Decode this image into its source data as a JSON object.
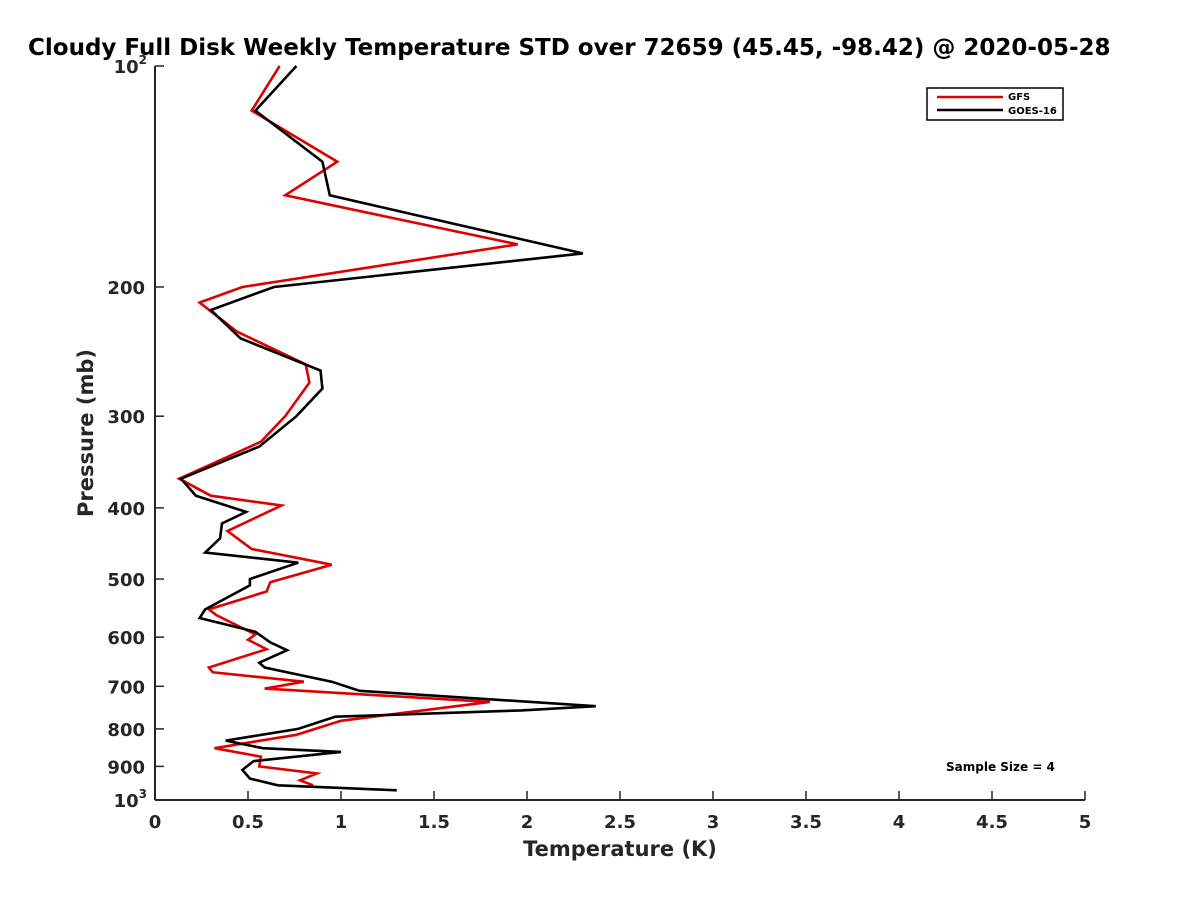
{
  "chart_data": {
    "type": "line",
    "title": "Cloudy Full Disk Weekly Temperature STD over 72659 (45.45, -98.42) @ 2020-05-28",
    "xlabel": "Temperature (K)",
    "ylabel": "Pressure (mb)",
    "xlim": [
      0,
      5
    ],
    "ylim": [
      100,
      1000
    ],
    "yscale": "log",
    "y_reversed": true,
    "x_ticks": [
      "0",
      "0.5",
      "1",
      "1.5",
      "2",
      "2.5",
      "3",
      "3.5",
      "4",
      "4.5",
      "5"
    ],
    "y_ticks": [
      {
        "value": 100,
        "base": "10",
        "exp": "2"
      },
      {
        "value": 200,
        "label": "200"
      },
      {
        "value": 300,
        "label": "300"
      },
      {
        "value": 400,
        "label": "400"
      },
      {
        "value": 500,
        "label": "500"
      },
      {
        "value": 600,
        "label": "600"
      },
      {
        "value": 700,
        "label": "700"
      },
      {
        "value": 800,
        "label": "800"
      },
      {
        "value": 900,
        "label": "900"
      },
      {
        "value": 1000,
        "base": "10",
        "exp": "3"
      }
    ],
    "grid": false,
    "legend_position": "top-right",
    "annotation": "Sample Size = 4",
    "series": [
      {
        "name": "GFS",
        "color": "#e00000",
        "points": [
          [
            0.67,
            100
          ],
          [
            0.52,
            115
          ],
          [
            0.98,
            135
          ],
          [
            0.7,
            150
          ],
          [
            1.95,
            175
          ],
          [
            0.47,
            200
          ],
          [
            0.24,
            210
          ],
          [
            0.44,
            230
          ],
          [
            0.81,
            255
          ],
          [
            0.83,
            270
          ],
          [
            0.7,
            300
          ],
          [
            0.57,
            325
          ],
          [
            0.13,
            365
          ],
          [
            0.3,
            385
          ],
          [
            0.68,
            397
          ],
          [
            0.39,
            430
          ],
          [
            0.52,
            455
          ],
          [
            0.95,
            478
          ],
          [
            0.62,
            505
          ],
          [
            0.6,
            520
          ],
          [
            0.29,
            550
          ],
          [
            0.33,
            560
          ],
          [
            0.54,
            595
          ],
          [
            0.5,
            605
          ],
          [
            0.6,
            623
          ],
          [
            0.29,
            660
          ],
          [
            0.31,
            670
          ],
          [
            0.8,
            690
          ],
          [
            0.59,
            705
          ],
          [
            1.8,
            735
          ],
          [
            1.0,
            780
          ],
          [
            0.76,
            815
          ],
          [
            0.32,
            850
          ],
          [
            0.57,
            873
          ],
          [
            0.56,
            900
          ],
          [
            0.87,
            920
          ],
          [
            0.78,
            940
          ],
          [
            0.85,
            955
          ]
        ]
      },
      {
        "name": "GOES-16",
        "color": "#000000",
        "points": [
          [
            0.76,
            100
          ],
          [
            0.54,
            115
          ],
          [
            0.9,
            135
          ],
          [
            0.94,
            150
          ],
          [
            2.3,
            180
          ],
          [
            0.64,
            200
          ],
          [
            0.3,
            215
          ],
          [
            0.46,
            235
          ],
          [
            0.89,
            260
          ],
          [
            0.9,
            275
          ],
          [
            0.76,
            300
          ],
          [
            0.56,
            330
          ],
          [
            0.14,
            365
          ],
          [
            0.22,
            385
          ],
          [
            0.49,
            405
          ],
          [
            0.36,
            420
          ],
          [
            0.35,
            440
          ],
          [
            0.27,
            460
          ],
          [
            0.77,
            475
          ],
          [
            0.51,
            500
          ],
          [
            0.51,
            510
          ],
          [
            0.27,
            550
          ],
          [
            0.24,
            565
          ],
          [
            0.54,
            590
          ],
          [
            0.62,
            610
          ],
          [
            0.71,
            625
          ],
          [
            0.56,
            650
          ],
          [
            0.59,
            660
          ],
          [
            0.95,
            690
          ],
          [
            1.1,
            710
          ],
          [
            2.37,
            745
          ],
          [
            1.97,
            755
          ],
          [
            0.97,
            770
          ],
          [
            0.77,
            800
          ],
          [
            0.38,
            830
          ],
          [
            0.58,
            850
          ],
          [
            1.0,
            860
          ],
          [
            0.53,
            885
          ],
          [
            0.47,
            910
          ],
          [
            0.51,
            935
          ],
          [
            0.66,
            955
          ],
          [
            1.3,
            970
          ]
        ]
      }
    ]
  }
}
